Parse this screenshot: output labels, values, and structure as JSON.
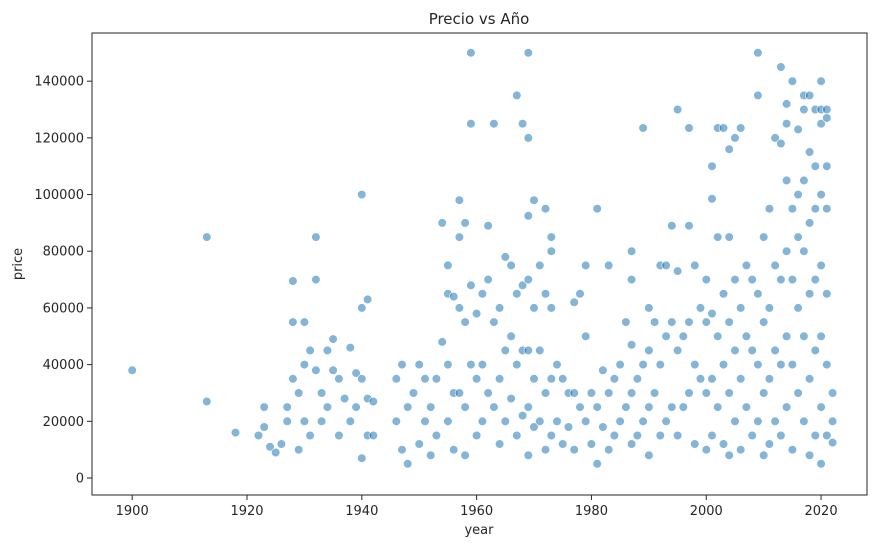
{
  "chart_data": {
    "type": "scatter",
    "title": "Precio vs Año",
    "xlabel": "year",
    "ylabel": "price",
    "xlim": [
      1893,
      2028
    ],
    "ylim": [
      -6000,
      157000
    ],
    "xticks": [
      1900,
      1920,
      1940,
      1960,
      1980,
      2000,
      2020
    ],
    "yticks": [
      0,
      20000,
      40000,
      60000,
      80000,
      100000,
      120000,
      140000
    ],
    "grid": false,
    "legend": "none",
    "point_color": "#1f77b4",
    "point_alpha": 0.55,
    "points": [
      [
        1900,
        38000
      ],
      [
        1913,
        85000
      ],
      [
        1913,
        27000
      ],
      [
        1918,
        16000
      ],
      [
        1922,
        15000
      ],
      [
        1923,
        25000
      ],
      [
        1923,
        18000
      ],
      [
        1924,
        11000
      ],
      [
        1925,
        9000
      ],
      [
        1926,
        12000
      ],
      [
        1927,
        20000
      ],
      [
        1927,
        25000
      ],
      [
        1928,
        35000
      ],
      [
        1928,
        55000
      ],
      [
        1928,
        69500
      ],
      [
        1929,
        30000
      ],
      [
        1929,
        10000
      ],
      [
        1930,
        40000
      ],
      [
        1930,
        55000
      ],
      [
        1930,
        20000
      ],
      [
        1931,
        45000
      ],
      [
        1931,
        15000
      ],
      [
        1932,
        85000
      ],
      [
        1932,
        70000
      ],
      [
        1932,
        38000
      ],
      [
        1933,
        30000
      ],
      [
        1933,
        20000
      ],
      [
        1934,
        45000
      ],
      [
        1934,
        25000
      ],
      [
        1935,
        49000
      ],
      [
        1935,
        38000
      ],
      [
        1936,
        35000
      ],
      [
        1936,
        15000
      ],
      [
        1937,
        28000
      ],
      [
        1938,
        46000
      ],
      [
        1938,
        20000
      ],
      [
        1939,
        37000
      ],
      [
        1939,
        25000
      ],
      [
        1940,
        100000
      ],
      [
        1940,
        60000
      ],
      [
        1940,
        35000
      ],
      [
        1940,
        7000
      ],
      [
        1941,
        63000
      ],
      [
        1941,
        28000
      ],
      [
        1941,
        15000
      ],
      [
        1942,
        27000
      ],
      [
        1942,
        15000
      ],
      [
        1946,
        20000
      ],
      [
        1946,
        35000
      ],
      [
        1947,
        40000
      ],
      [
        1947,
        10000
      ],
      [
        1948,
        25000
      ],
      [
        1948,
        5000
      ],
      [
        1949,
        30000
      ],
      [
        1950,
        40000
      ],
      [
        1950,
        12000
      ],
      [
        1951,
        35000
      ],
      [
        1951,
        20000
      ],
      [
        1952,
        25000
      ],
      [
        1952,
        8000
      ],
      [
        1953,
        35000
      ],
      [
        1953,
        15000
      ],
      [
        1954,
        90000
      ],
      [
        1954,
        48000
      ],
      [
        1955,
        75000
      ],
      [
        1955,
        65000
      ],
      [
        1955,
        40000
      ],
      [
        1955,
        20000
      ],
      [
        1956,
        64000
      ],
      [
        1956,
        30000
      ],
      [
        1956,
        10000
      ],
      [
        1957,
        98000
      ],
      [
        1957,
        85000
      ],
      [
        1957,
        60000
      ],
      [
        1957,
        30000
      ],
      [
        1958,
        90000
      ],
      [
        1958,
        55000
      ],
      [
        1958,
        25000
      ],
      [
        1958,
        8000
      ],
      [
        1959,
        150000
      ],
      [
        1959,
        125000
      ],
      [
        1959,
        68000
      ],
      [
        1959,
        40000
      ],
      [
        1960,
        58000
      ],
      [
        1960,
        35000
      ],
      [
        1960,
        15000
      ],
      [
        1961,
        65000
      ],
      [
        1961,
        40000
      ],
      [
        1961,
        20000
      ],
      [
        1962,
        89000
      ],
      [
        1962,
        70000
      ],
      [
        1962,
        30000
      ],
      [
        1963,
        125000
      ],
      [
        1963,
        55000
      ],
      [
        1963,
        25000
      ],
      [
        1964,
        60000
      ],
      [
        1964,
        35000
      ],
      [
        1964,
        12000
      ],
      [
        1965,
        78000
      ],
      [
        1965,
        45000
      ],
      [
        1965,
        20000
      ],
      [
        1966,
        75000
      ],
      [
        1966,
        50000
      ],
      [
        1966,
        28000
      ],
      [
        1967,
        135000
      ],
      [
        1967,
        65000
      ],
      [
        1967,
        40000
      ],
      [
        1967,
        15000
      ],
      [
        1968,
        125000
      ],
      [
        1968,
        68000
      ],
      [
        1968,
        45000
      ],
      [
        1968,
        22000
      ],
      [
        1969,
        150000
      ],
      [
        1969,
        120000
      ],
      [
        1969,
        92500
      ],
      [
        1969,
        70000
      ],
      [
        1969,
        45000
      ],
      [
        1969,
        25000
      ],
      [
        1969,
        8000
      ],
      [
        1970,
        98000
      ],
      [
        1970,
        60000
      ],
      [
        1970,
        35000
      ],
      [
        1970,
        18000
      ],
      [
        1971,
        75000
      ],
      [
        1971,
        45000
      ],
      [
        1971,
        20000
      ],
      [
        1972,
        95000
      ],
      [
        1972,
        65000
      ],
      [
        1972,
        30000
      ],
      [
        1972,
        10000
      ],
      [
        1973,
        85000
      ],
      [
        1973,
        80000
      ],
      [
        1973,
        60000
      ],
      [
        1973,
        35000
      ],
      [
        1973,
        15000
      ],
      [
        1974,
        40000
      ],
      [
        1974,
        20000
      ],
      [
        1975,
        35000
      ],
      [
        1975,
        12000
      ],
      [
        1976,
        30000
      ],
      [
        1976,
        18000
      ],
      [
        1977,
        62000
      ],
      [
        1977,
        30000
      ],
      [
        1977,
        10000
      ],
      [
        1978,
        65000
      ],
      [
        1978,
        25000
      ],
      [
        1979,
        75000
      ],
      [
        1979,
        50000
      ],
      [
        1979,
        20000
      ],
      [
        1980,
        30000
      ],
      [
        1980,
        12000
      ],
      [
        1981,
        95000
      ],
      [
        1981,
        25000
      ],
      [
        1981,
        5000
      ],
      [
        1982,
        38000
      ],
      [
        1982,
        18000
      ],
      [
        1983,
        75000
      ],
      [
        1983,
        30000
      ],
      [
        1983,
        10000
      ],
      [
        1984,
        35000
      ],
      [
        1984,
        15000
      ],
      [
        1985,
        40000
      ],
      [
        1985,
        20000
      ],
      [
        1986,
        55000
      ],
      [
        1986,
        25000
      ],
      [
        1987,
        80000
      ],
      [
        1987,
        70000
      ],
      [
        1987,
        47000
      ],
      [
        1987,
        30000
      ],
      [
        1987,
        12000
      ],
      [
        1988,
        35000
      ],
      [
        1988,
        15000
      ],
      [
        1989,
        123500
      ],
      [
        1989,
        40000
      ],
      [
        1989,
        20000
      ],
      [
        1990,
        60000
      ],
      [
        1990,
        45000
      ],
      [
        1990,
        25000
      ],
      [
        1990,
        8000
      ],
      [
        1991,
        55000
      ],
      [
        1991,
        30000
      ],
      [
        1992,
        75000
      ],
      [
        1992,
        40000
      ],
      [
        1992,
        15000
      ],
      [
        1993,
        75000
      ],
      [
        1993,
        50000
      ],
      [
        1993,
        20000
      ],
      [
        1994,
        89000
      ],
      [
        1994,
        55000
      ],
      [
        1994,
        25000
      ],
      [
        1995,
        130000
      ],
      [
        1995,
        73000
      ],
      [
        1995,
        45000
      ],
      [
        1995,
        15000
      ],
      [
        1996,
        50000
      ],
      [
        1996,
        25000
      ],
      [
        1997,
        123500
      ],
      [
        1997,
        89000
      ],
      [
        1997,
        55000
      ],
      [
        1997,
        30000
      ],
      [
        1998,
        75000
      ],
      [
        1998,
        40000
      ],
      [
        1998,
        12000
      ],
      [
        1999,
        60000
      ],
      [
        1999,
        35000
      ],
      [
        2000,
        70000
      ],
      [
        2000,
        55000
      ],
      [
        2000,
        30000
      ],
      [
        2000,
        10000
      ],
      [
        2001,
        110000
      ],
      [
        2001,
        98500
      ],
      [
        2001,
        58000
      ],
      [
        2001,
        35000
      ],
      [
        2001,
        15000
      ],
      [
        2002,
        123500
      ],
      [
        2002,
        85000
      ],
      [
        2002,
        50000
      ],
      [
        2002,
        25000
      ],
      [
        2003,
        123500
      ],
      [
        2003,
        65000
      ],
      [
        2003,
        40000
      ],
      [
        2003,
        12000
      ],
      [
        2004,
        116000
      ],
      [
        2004,
        85000
      ],
      [
        2004,
        55000
      ],
      [
        2004,
        30000
      ],
      [
        2004,
        8000
      ],
      [
        2005,
        120000
      ],
      [
        2005,
        70000
      ],
      [
        2005,
        45000
      ],
      [
        2005,
        20000
      ],
      [
        2006,
        123500
      ],
      [
        2006,
        60000
      ],
      [
        2006,
        35000
      ],
      [
        2006,
        10000
      ],
      [
        2007,
        75000
      ],
      [
        2007,
        50000
      ],
      [
        2007,
        25000
      ],
      [
        2008,
        70000
      ],
      [
        2008,
        45000
      ],
      [
        2008,
        15000
      ],
      [
        2009,
        150000
      ],
      [
        2009,
        135000
      ],
      [
        2009,
        65000
      ],
      [
        2009,
        40000
      ],
      [
        2009,
        20000
      ],
      [
        2010,
        85000
      ],
      [
        2010,
        55000
      ],
      [
        2010,
        30000
      ],
      [
        2010,
        8000
      ],
      [
        2011,
        95000
      ],
      [
        2011,
        60000
      ],
      [
        2011,
        35000
      ],
      [
        2011,
        12000
      ],
      [
        2012,
        120000
      ],
      [
        2012,
        75000
      ],
      [
        2012,
        45000
      ],
      [
        2012,
        20000
      ],
      [
        2013,
        145000
      ],
      [
        2013,
        118000
      ],
      [
        2013,
        70000
      ],
      [
        2013,
        40000
      ],
      [
        2013,
        15000
      ],
      [
        2014,
        132000
      ],
      [
        2014,
        125000
      ],
      [
        2014,
        105000
      ],
      [
        2014,
        80000
      ],
      [
        2014,
        50000
      ],
      [
        2014,
        25000
      ],
      [
        2015,
        140000
      ],
      [
        2015,
        95000
      ],
      [
        2015,
        70000
      ],
      [
        2015,
        40000
      ],
      [
        2015,
        10000
      ],
      [
        2016,
        123000
      ],
      [
        2016,
        100000
      ],
      [
        2016,
        85000
      ],
      [
        2016,
        60000
      ],
      [
        2016,
        30000
      ],
      [
        2017,
        135000
      ],
      [
        2017,
        130000
      ],
      [
        2017,
        105000
      ],
      [
        2017,
        80000
      ],
      [
        2017,
        50000
      ],
      [
        2017,
        20000
      ],
      [
        2018,
        135000
      ],
      [
        2018,
        115000
      ],
      [
        2018,
        90000
      ],
      [
        2018,
        65000
      ],
      [
        2018,
        35000
      ],
      [
        2018,
        8000
      ],
      [
        2019,
        130000
      ],
      [
        2019,
        110000
      ],
      [
        2019,
        95000
      ],
      [
        2019,
        70000
      ],
      [
        2019,
        45000
      ],
      [
        2019,
        15000
      ],
      [
        2020,
        140000
      ],
      [
        2020,
        130000
      ],
      [
        2020,
        125000
      ],
      [
        2020,
        100000
      ],
      [
        2020,
        75000
      ],
      [
        2020,
        50000
      ],
      [
        2020,
        25000
      ],
      [
        2020,
        5000
      ],
      [
        2021,
        130000
      ],
      [
        2021,
        127000
      ],
      [
        2021,
        110000
      ],
      [
        2021,
        95000
      ],
      [
        2021,
        65000
      ],
      [
        2021,
        40000
      ],
      [
        2021,
        15000
      ],
      [
        2022,
        30000
      ],
      [
        2022,
        20000
      ],
      [
        2022,
        12500
      ]
    ]
  }
}
